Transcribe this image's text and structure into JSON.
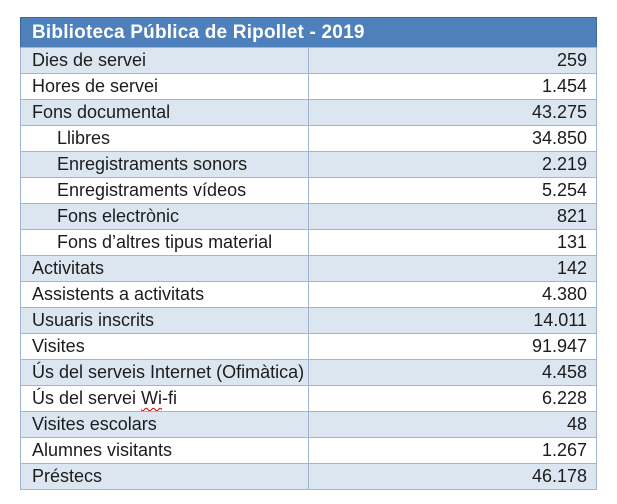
{
  "colors": {
    "header_bg": "#4e81bc",
    "header_text": "#ffffff",
    "band_bg": "#dce6f1",
    "row_bg": "#ffffff",
    "border": "#9fb5d1",
    "border_dark": "#3e689e",
    "text": "#1c1c1c",
    "squiggle": "#cc0000"
  },
  "table": {
    "title": "Biblioteca Pública de Ripollet - 2019",
    "rows": [
      {
        "label": "Dies de servei",
        "value": "259",
        "indent": false
      },
      {
        "label": "Hores de servei",
        "value": "1.454",
        "indent": false
      },
      {
        "label": "Fons documental",
        "value": "43.275",
        "indent": false
      },
      {
        "label": "Llibres",
        "value": "34.850",
        "indent": true
      },
      {
        "label": "Enregistraments sonors",
        "value": "2.219",
        "indent": true
      },
      {
        "label": "Enregistraments vídeos",
        "value": "5.254",
        "indent": true
      },
      {
        "label": "Fons electrònic",
        "value": "821",
        "indent": true
      },
      {
        "label": "Fons d’altres tipus material",
        "value": "131",
        "indent": true
      },
      {
        "label": "Activitats",
        "value": "142",
        "indent": false
      },
      {
        "label": "Assistents a activitats",
        "value": "4.380",
        "indent": false
      },
      {
        "label": "Usuaris inscrits",
        "value": "14.011",
        "indent": false
      },
      {
        "label": "Visites",
        "value": "91.947",
        "indent": false
      },
      {
        "label": "Ús del serveis Internet (Ofimàtica)",
        "value": "4.458",
        "indent": false
      },
      {
        "label": "Ús del servei Wi-fi",
        "value": "6.228",
        "indent": false,
        "misspelled": "Wi"
      },
      {
        "label": "Visites escolars",
        "value": "48",
        "indent": false
      },
      {
        "label": "Alumnes visitants",
        "value": "1.267",
        "indent": false
      },
      {
        "label": "Préstecs",
        "value": "46.178",
        "indent": false
      }
    ]
  }
}
